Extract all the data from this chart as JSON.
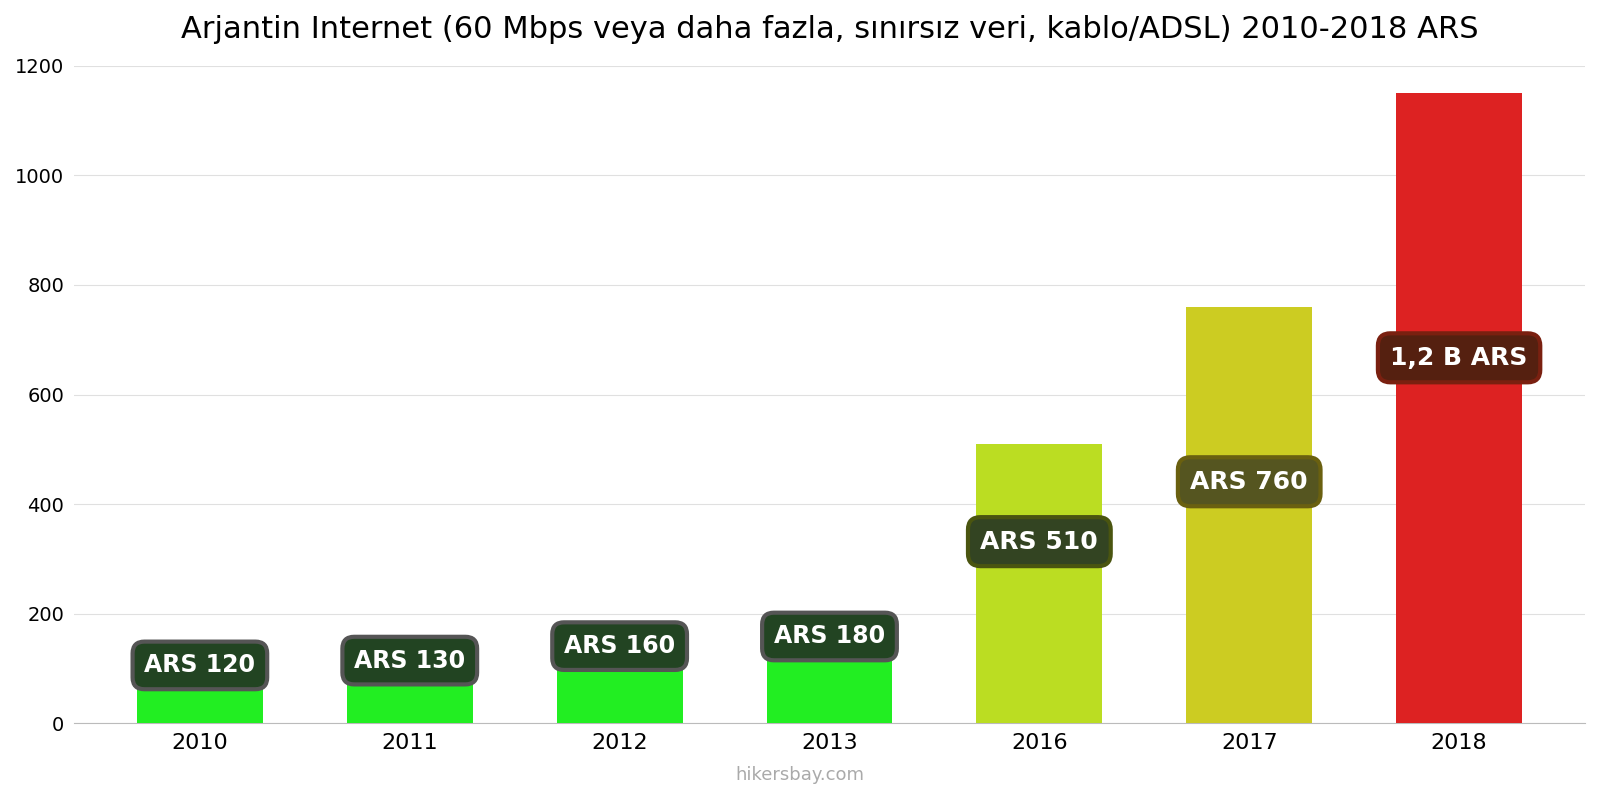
{
  "title": "Arjantin Internet (60 Mbps veya daha fazla, sınırsız veri, kablo/ADSL) 2010-2018 ARS",
  "categories": [
    "2010",
    "2011",
    "2012",
    "2013",
    "2016",
    "2017",
    "2018"
  ],
  "values": [
    120,
    130,
    160,
    180,
    510,
    760,
    1150
  ],
  "bar_colors": [
    "#22ee22",
    "#22ee22",
    "#22ee22",
    "#22ee22",
    "#bbdd22",
    "#cccc22",
    "#dd2222"
  ],
  "label_bg_colors": [
    "#555555",
    "#555555",
    "#555555",
    "#555555",
    "#4a5510",
    "#6a6010",
    "#7a2010"
  ],
  "label_inner_colors": [
    "#224422",
    "#224422",
    "#224422",
    "#224422",
    "#334422",
    "#555520",
    "#552010"
  ],
  "labels": [
    "ARS 120",
    "ARS 130",
    "ARS 160",
    "ARS 180",
    "ARS 510",
    "ARS 760",
    "1,2 B ARS"
  ],
  "label_y_fractions": [
    0.88,
    0.88,
    0.88,
    0.88,
    0.65,
    0.58,
    0.58
  ],
  "ylim": [
    0,
    1200
  ],
  "yticks": [
    0,
    200,
    400,
    600,
    800,
    1000,
    1200
  ],
  "background_color": "#ffffff",
  "title_fontsize": 22,
  "watermark": "hikersbay.com",
  "bar_width": 0.6
}
